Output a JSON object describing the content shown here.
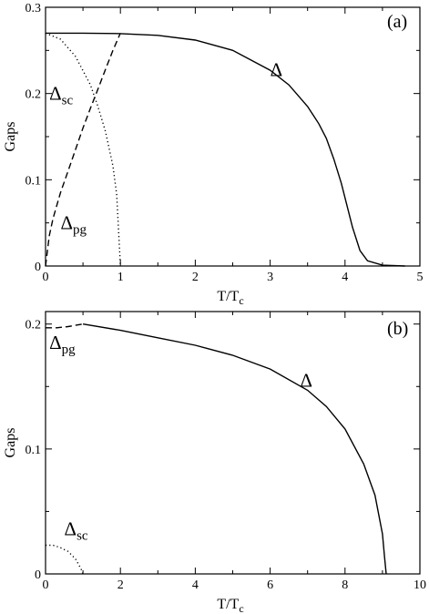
{
  "chart_data": [
    {
      "panel_label": "(a)",
      "type": "line",
      "xlabel": "T/T",
      "xlabel_sub": "c",
      "ylabel": "Gaps",
      "xlim": [
        0,
        5
      ],
      "ylim": [
        0,
        0.3
      ],
      "xticks": [
        0,
        1,
        2,
        3,
        4,
        5
      ],
      "xtick_labels": [
        "0",
        "1",
        "2",
        "3",
        "4",
        "5"
      ],
      "yticks": [
        0,
        0.1,
        0.2,
        0.3
      ],
      "ytick_labels": [
        "0",
        "0.1",
        "0.2",
        "0.3"
      ],
      "grid": false,
      "series": [
        {
          "key": "delta",
          "style": "solid",
          "x": [
            0,
            0.5,
            1.0,
            1.5,
            2.0,
            2.5,
            3.0,
            3.25,
            3.5,
            3.65,
            3.75,
            3.85,
            3.95,
            4.05,
            4.1,
            4.2,
            4.3,
            4.5,
            4.8
          ],
          "y": [
            0.27,
            0.27,
            0.2695,
            0.2675,
            0.262,
            0.25,
            0.227,
            0.21,
            0.185,
            0.165,
            0.148,
            0.124,
            0.096,
            0.062,
            0.045,
            0.018,
            0.006,
            0.001,
            0
          ]
        },
        {
          "key": "delta_sc",
          "style": "dotted",
          "x": [
            0,
            0.2,
            0.4,
            0.6,
            0.7,
            0.8,
            0.9,
            0.95,
            1.0
          ],
          "y": [
            0.27,
            0.263,
            0.243,
            0.21,
            0.185,
            0.156,
            0.116,
            0.083,
            0
          ]
        },
        {
          "key": "delta_pg",
          "style": "dashed",
          "x": [
            0,
            0.05,
            0.1,
            0.2,
            0.3,
            0.4,
            0.5,
            0.6,
            0.7,
            0.8,
            0.9,
            1.0
          ],
          "y": [
            0,
            0.035,
            0.055,
            0.085,
            0.11,
            0.135,
            0.16,
            0.183,
            0.205,
            0.228,
            0.25,
            0.27
          ]
        }
      ],
      "annotations": [
        {
          "main": "Δ",
          "sub": "",
          "x": 3.0,
          "y": 0.22
        },
        {
          "main": "Δ",
          "sub": "sc",
          "x": 0.05,
          "y": 0.193
        },
        {
          "main": "Δ",
          "sub": "pg",
          "x": 0.2,
          "y": 0.043
        }
      ]
    },
    {
      "panel_label": "(b)",
      "type": "line",
      "xlabel": "T/T",
      "xlabel_sub": "c",
      "ylabel": "Gaps",
      "xlim": [
        0,
        10
      ],
      "ylim": [
        0,
        0.21
      ],
      "xticks": [
        0,
        2,
        4,
        6,
        8,
        10
      ],
      "xtick_labels": [
        "0",
        "2",
        "4",
        "6",
        "8",
        "10"
      ],
      "yticks": [
        0,
        0.1,
        0.2
      ],
      "ytick_labels": [
        "0",
        "0.1",
        "0.2"
      ],
      "grid": false,
      "series": [
        {
          "key": "delta",
          "style": "solid",
          "x": [
            1.0,
            2.0,
            3.0,
            4.0,
            5.0,
            6.0,
            7.0,
            7.5,
            8.0,
            8.5,
            8.8,
            9.0,
            9.05,
            9.1
          ],
          "y": [
            0.2,
            0.195,
            0.189,
            0.183,
            0.175,
            0.164,
            0.147,
            0.134,
            0.116,
            0.088,
            0.063,
            0.032,
            0.015,
            0
          ]
        },
        {
          "key": "delta_pg",
          "style": "dashed",
          "x": [
            0,
            0.3,
            0.6,
            0.8,
            1.0
          ],
          "y": [
            0.197,
            0.197,
            0.198,
            0.199,
            0.2
          ]
        },
        {
          "key": "delta_sc",
          "style": "dotted",
          "x": [
            0,
            0.2,
            0.4,
            0.6,
            0.8,
            0.95,
            1.0
          ],
          "y": [
            0.023,
            0.023,
            0.021,
            0.018,
            0.012,
            0.004,
            0
          ]
        }
      ],
      "annotations": [
        {
          "main": "Δ",
          "sub": "",
          "x": 6.8,
          "y": 0.15
        },
        {
          "main": "Δ",
          "sub": "pg",
          "x": 0.1,
          "y": 0.18
        },
        {
          "main": "Δ",
          "sub": "sc",
          "x": 0.5,
          "y": 0.031
        }
      ]
    }
  ]
}
